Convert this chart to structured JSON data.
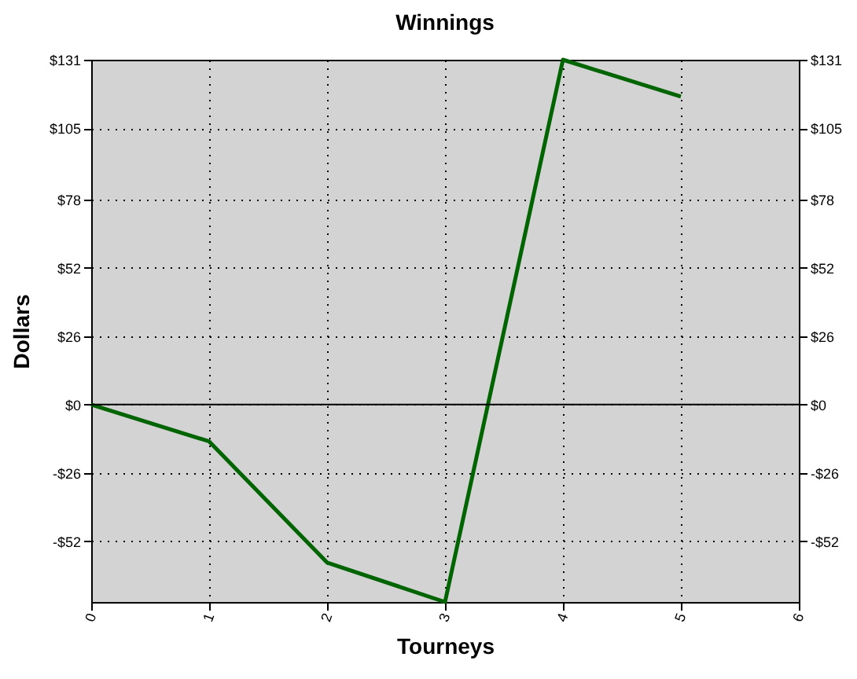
{
  "chart_data": {
    "type": "line",
    "title": "Winnings",
    "xlabel": "Tourneys",
    "ylabel": "Dollars",
    "x": [
      0,
      1,
      2,
      3,
      4,
      5
    ],
    "series": [
      {
        "color": "#006400",
        "values": [
          0,
          -14,
          -60,
          -75,
          131,
          117
        ]
      }
    ],
    "xlim": [
      0,
      6
    ],
    "xticks": [
      0,
      1,
      2,
      3,
      4,
      5,
      6
    ],
    "ylim": [
      -75,
      131
    ],
    "yticks": [
      {
        "value": -52,
        "label": "-$52"
      },
      {
        "value": -26,
        "label": "-$26"
      },
      {
        "value": 0,
        "label": "$0"
      },
      {
        "value": 26,
        "label": "$26"
      },
      {
        "value": 52,
        "label": "$52"
      },
      {
        "value": 78,
        "label": "$78"
      },
      {
        "value": 105,
        "label": "$105"
      },
      {
        "value": 131,
        "label": "$131"
      }
    ],
    "y2lim": [
      -75,
      131
    ],
    "y2ticks": [
      {
        "value": -52,
        "label": "-$52"
      },
      {
        "value": -26,
        "label": "-$26"
      },
      {
        "value": 0,
        "label": "$0"
      },
      {
        "value": 26,
        "label": "$26"
      },
      {
        "value": 52,
        "label": "$52"
      },
      {
        "value": 78,
        "label": "$78"
      },
      {
        "value": 105,
        "label": "$105"
      },
      {
        "value": 131,
        "label": "$131"
      }
    ],
    "ref_lines": [
      {
        "axis": "y",
        "value": 0,
        "color": "#000000",
        "line_style": "solid"
      }
    ],
    "grid": true,
    "line_style": "solid",
    "marker": "none"
  }
}
